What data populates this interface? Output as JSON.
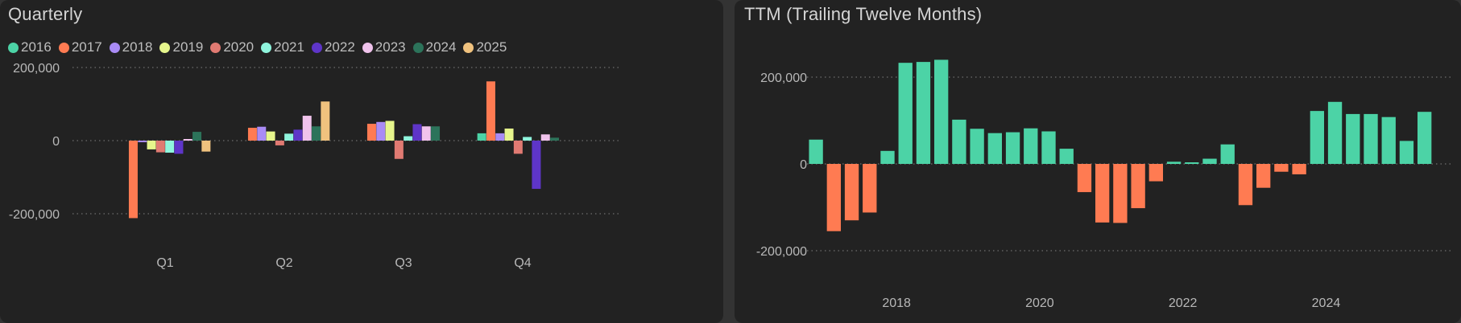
{
  "colors": {
    "background": "#333333",
    "panel_background": "#222222",
    "text": "#d4d4d4",
    "axis_text": "#b8b8b8",
    "gridline": "#6e6e6e",
    "ttm_positive": "#4cd3a6",
    "ttm_negative": "#ff7b52"
  },
  "quarterly": {
    "title": "Quarterly",
    "legend": [
      {
        "label": "2016",
        "color": "#4cd3a6"
      },
      {
        "label": "2017",
        "color": "#ff7b52"
      },
      {
        "label": "2018",
        "color": "#a98bf5"
      },
      {
        "label": "2019",
        "color": "#e6f68c"
      },
      {
        "label": "2020",
        "color": "#e07a72"
      },
      {
        "label": "2021",
        "color": "#8ff5dd"
      },
      {
        "label": "2022",
        "color": "#5e35c8"
      },
      {
        "label": "2023",
        "color": "#f0c3ec"
      },
      {
        "label": "2024",
        "color": "#2c735a"
      },
      {
        "label": "2025",
        "color": "#f0c27e"
      }
    ]
  },
  "ttm": {
    "title": "TTM (Trailing Twelve Months)"
  },
  "chart_data": [
    {
      "type": "bar",
      "title": "Quarterly",
      "categories": [
        "Q1",
        "Q2",
        "Q3",
        "Q4"
      ],
      "yticks": [
        {
          "value": 200000,
          "label": "200,000"
        },
        {
          "value": 0,
          "label": "0"
        },
        {
          "value": -200000,
          "label": "-200,000"
        }
      ],
      "ylim": [
        -240000,
        205000
      ],
      "grid": "dotted horizontal",
      "legend_position": "top-left",
      "series": [
        {
          "name": "2016",
          "color": "#4cd3a6",
          "values": [
            null,
            null,
            null,
            20000
          ]
        },
        {
          "name": "2017",
          "color": "#ff7b52",
          "values": [
            -212000,
            35000,
            46000,
            162000
          ]
        },
        {
          "name": "2018",
          "color": "#a98bf5",
          "values": [
            -3000,
            38000,
            51000,
            20000
          ]
        },
        {
          "name": "2019",
          "color": "#e6f68c",
          "values": [
            -24000,
            25000,
            54000,
            33000
          ]
        },
        {
          "name": "2020",
          "color": "#e07a72",
          "values": [
            -32000,
            -13000,
            -50000,
            -36000
          ]
        },
        {
          "name": "2021",
          "color": "#8ff5dd",
          "values": [
            -33000,
            19000,
            12000,
            10000
          ]
        },
        {
          "name": "2022",
          "color": "#5e35c8",
          "values": [
            -36000,
            30000,
            45000,
            -132000
          ]
        },
        {
          "name": "2023",
          "color": "#f0c3ec",
          "values": [
            3000,
            68000,
            39000,
            17000
          ]
        },
        {
          "name": "2024",
          "color": "#2c735a",
          "values": [
            24000,
            39000,
            39000,
            8000
          ]
        },
        {
          "name": "2025",
          "color": "#f0c27e",
          "values": [
            -30000,
            107000,
            null,
            null
          ]
        }
      ]
    },
    {
      "type": "bar",
      "title": "TTM (Trailing Twelve Months)",
      "x": [
        2016.875,
        2017.125,
        2017.375,
        2017.625,
        2017.875,
        2018.125,
        2018.375,
        2018.625,
        2018.875,
        2019.125,
        2019.375,
        2019.625,
        2019.875,
        2020.125,
        2020.375,
        2020.625,
        2020.875,
        2021.125,
        2021.375,
        2021.625,
        2021.875,
        2022.125,
        2022.375,
        2022.625,
        2022.875,
        2023.125,
        2023.375,
        2023.625,
        2023.875,
        2024.125,
        2024.375,
        2024.625,
        2024.875,
        2025.125,
        2025.375,
        2025.625
      ],
      "values": [
        56000,
        -155000,
        -130000,
        -112000,
        30000,
        233000,
        235000,
        240000,
        102000,
        81000,
        71000,
        73000,
        82000,
        75000,
        35000,
        -65000,
        -135000,
        -136000,
        -102000,
        -40000,
        5000,
        2000,
        12000,
        45000,
        -95000,
        -55000,
        -18000,
        -24000,
        122000,
        143000,
        115000,
        115000,
        108000,
        53000,
        120000,
        null
      ],
      "xticks": [
        {
          "value": 2018,
          "label": "2018"
        },
        {
          "value": 2020,
          "label": "2020"
        },
        {
          "value": 2022,
          "label": "2022"
        },
        {
          "value": 2024,
          "label": "2024"
        }
      ],
      "yticks": [
        {
          "value": 200000,
          "label": "200,000"
        },
        {
          "value": 0,
          "label": "0"
        },
        {
          "value": -200000,
          "label": "-200,000"
        }
      ],
      "xlim": [
        2016.75,
        2025.75
      ],
      "ylim": [
        -200000,
        270000
      ],
      "grid": "dotted horizontal",
      "bar_colors": "positive teal, negative orange"
    }
  ]
}
